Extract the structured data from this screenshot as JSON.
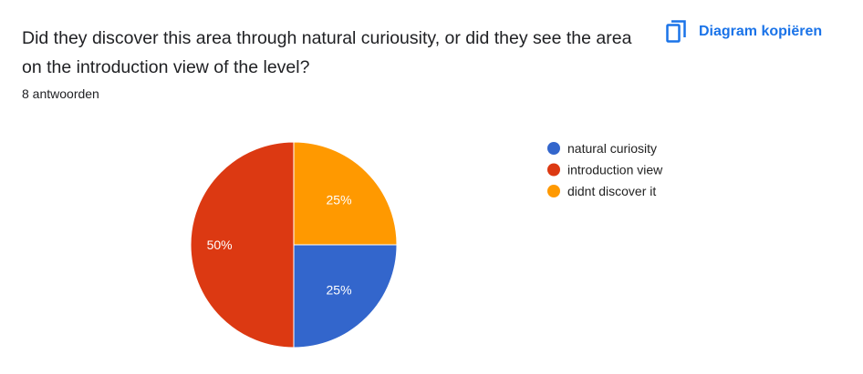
{
  "question": "Did they discover this area through natural curiousity, or did they see the area on the introduction view of the level?",
  "responses": "8 antwoorden",
  "copy_button": {
    "label": "Diagram kopiëren",
    "icon": "copy-icon",
    "color": "#1a73e8"
  },
  "chart_data": {
    "type": "pie",
    "legend_position": "right",
    "slices": [
      {
        "label": "natural curiosity",
        "value": 25,
        "display": "25%",
        "color": "#3366cc"
      },
      {
        "label": "introduction view",
        "value": 50,
        "display": "50%",
        "color": "#dc3912"
      },
      {
        "label": "didnt discover it",
        "value": 25,
        "display": "25%",
        "color": "#ff9900"
      }
    ]
  }
}
